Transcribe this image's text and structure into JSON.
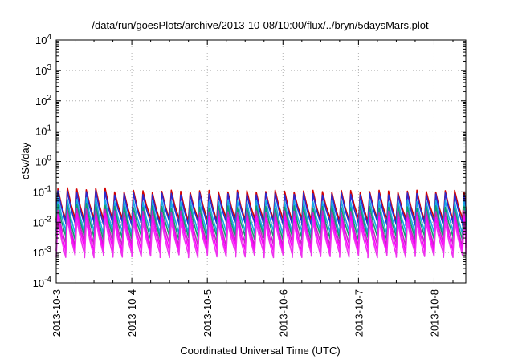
{
  "chart_data": {
    "type": "line",
    "title": "/data/run/goesPlots/archive/2013-10-08/10:00/flux/../bryn/5daysMars.plot",
    "xlabel": "Coordinated Universal Time (UTC)",
    "ylabel": "cSv/day",
    "y_scale": "log",
    "ylim": [
      0.0001,
      10000
    ],
    "yticks": [
      {
        "value": 0.0001,
        "base": "10",
        "exp": "-4"
      },
      {
        "value": 0.001,
        "base": "10",
        "exp": "-3"
      },
      {
        "value": 0.01,
        "base": "10",
        "exp": "-2"
      },
      {
        "value": 0.1,
        "base": "10",
        "exp": "-1"
      },
      {
        "value": 1,
        "base": "10",
        "exp": "0"
      },
      {
        "value": 10,
        "base": "10",
        "exp": "1"
      },
      {
        "value": 100,
        "base": "10",
        "exp": "2"
      },
      {
        "value": 1000,
        "base": "10",
        "exp": "3"
      },
      {
        "value": 10000,
        "base": "10",
        "exp": "4"
      }
    ],
    "xlim": [
      "2013-10-03",
      "2013-10-08 10:00"
    ],
    "xlim_days": [
      0,
      5.42
    ],
    "xticks": [
      {
        "day": 0,
        "label": "2013-10-3"
      },
      {
        "day": 1,
        "label": "2013-10-4"
      },
      {
        "day": 2,
        "label": "2013-10-5"
      },
      {
        "day": 3,
        "label": "2013-10-6"
      },
      {
        "day": 4,
        "label": "2013-10-7"
      },
      {
        "day": 5,
        "label": "2013-10-8"
      }
    ],
    "grid": true,
    "cycles_per_day": 8,
    "series": [
      {
        "color": "#d40000",
        "peak": 0.105,
        "trough": 0.012
      },
      {
        "color": "#2a2ad0",
        "peak": 0.085,
        "trough": 0.009
      },
      {
        "color": "#1aa8e8",
        "peak": 0.05,
        "trough": 0.0045
      },
      {
        "color": "#0f9f6e",
        "peak": 0.032,
        "trough": 0.003
      },
      {
        "color": "#c02ac0",
        "peak": 0.022,
        "trough": 0.0018
      },
      {
        "color": "#ff00ff",
        "peak": 0.015,
        "trough": 0.0012
      },
      {
        "color": "#ee33ee",
        "peak": 0.01,
        "trough": 0.0008
      }
    ]
  }
}
